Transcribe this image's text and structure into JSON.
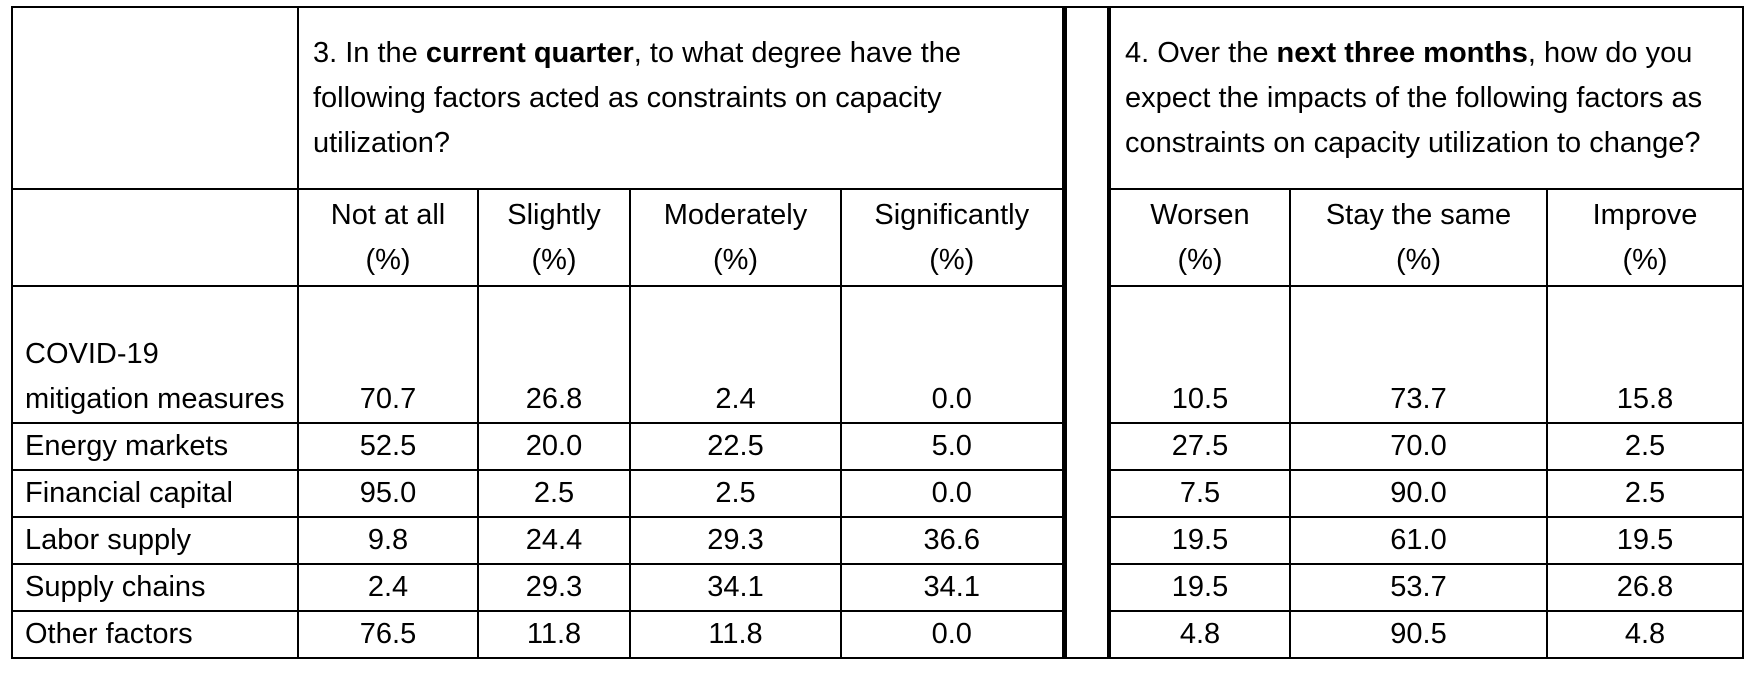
{
  "q3": {
    "prefix": "3. In the ",
    "bold": "current quarter",
    "suffix": ", to what degree have the following factors acted as constraints on capacity utilization?"
  },
  "q4": {
    "prefix": "4. Over the ",
    "bold": "next three months",
    "suffix": ", how do you expect the impacts of the following factors as constraints on capacity utilization to change?"
  },
  "columns": [
    {
      "label": "Not at all",
      "unit": "(%)"
    },
    {
      "label": "Slightly",
      "unit": "(%)"
    },
    {
      "label": "Moderately",
      "unit": "(%)"
    },
    {
      "label": "Significantly",
      "unit": "(%)"
    },
    {
      "label": "Worsen",
      "unit": "(%)"
    },
    {
      "label": "Stay the same",
      "unit": "(%)"
    },
    {
      "label": "Improve",
      "unit": "(%)"
    }
  ],
  "rows": [
    {
      "factor": "COVID-19 mitigation measures",
      "values": [
        "70.7",
        "26.8",
        "2.4",
        "0.0",
        "10.5",
        "73.7",
        "15.8"
      ]
    },
    {
      "factor": "Energy markets",
      "values": [
        "52.5",
        "20.0",
        "22.5",
        "5.0",
        "27.5",
        "70.0",
        "2.5"
      ]
    },
    {
      "factor": "Financial capital",
      "values": [
        "95.0",
        "2.5",
        "2.5",
        "0.0",
        "7.5",
        "90.0",
        "2.5"
      ]
    },
    {
      "factor": "Labor supply",
      "values": [
        "9.8",
        "24.4",
        "29.3",
        "36.6",
        "19.5",
        "61.0",
        "19.5"
      ]
    },
    {
      "factor": "Supply chains",
      "values": [
        "2.4",
        "29.3",
        "34.1",
        "34.1",
        "19.5",
        "53.7",
        "26.8"
      ]
    },
    {
      "factor": "Other factors",
      "values": [
        "76.5",
        "11.8",
        "11.8",
        "0.0",
        "4.8",
        "90.5",
        "4.8"
      ]
    }
  ]
}
